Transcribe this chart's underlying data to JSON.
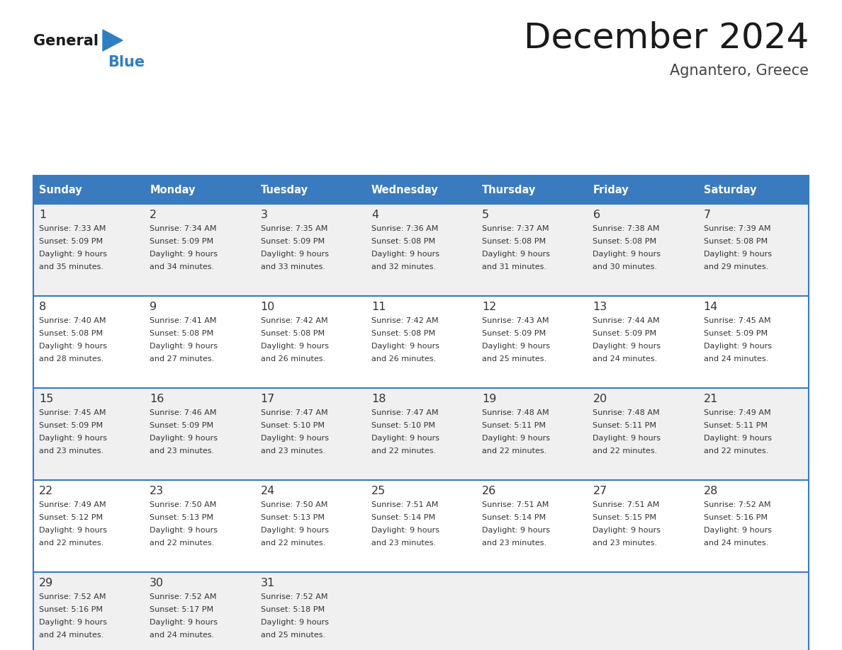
{
  "title": "December 2024",
  "subtitle": "Agnantero, Greece",
  "days_of_week": [
    "Sunday",
    "Monday",
    "Tuesday",
    "Wednesday",
    "Thursday",
    "Friday",
    "Saturday"
  ],
  "header_bg": "#3a7abf",
  "header_text": "#ffffff",
  "row_bg_odd": "#f0f0f0",
  "row_bg_even": "#ffffff",
  "border_color": "#3a7abf",
  "text_color": "#333333",
  "days": [
    {
      "day": 1,
      "col": 0,
      "row": 0,
      "sunrise": "7:33 AM",
      "sunset": "5:09 PM",
      "daylight": "9 hours and 35 minutes."
    },
    {
      "day": 2,
      "col": 1,
      "row": 0,
      "sunrise": "7:34 AM",
      "sunset": "5:09 PM",
      "daylight": "9 hours and 34 minutes."
    },
    {
      "day": 3,
      "col": 2,
      "row": 0,
      "sunrise": "7:35 AM",
      "sunset": "5:09 PM",
      "daylight": "9 hours and 33 minutes."
    },
    {
      "day": 4,
      "col": 3,
      "row": 0,
      "sunrise": "7:36 AM",
      "sunset": "5:08 PM",
      "daylight": "9 hours and 32 minutes."
    },
    {
      "day": 5,
      "col": 4,
      "row": 0,
      "sunrise": "7:37 AM",
      "sunset": "5:08 PM",
      "daylight": "9 hours and 31 minutes."
    },
    {
      "day": 6,
      "col": 5,
      "row": 0,
      "sunrise": "7:38 AM",
      "sunset": "5:08 PM",
      "daylight": "9 hours and 30 minutes."
    },
    {
      "day": 7,
      "col": 6,
      "row": 0,
      "sunrise": "7:39 AM",
      "sunset": "5:08 PM",
      "daylight": "9 hours and 29 minutes."
    },
    {
      "day": 8,
      "col": 0,
      "row": 1,
      "sunrise": "7:40 AM",
      "sunset": "5:08 PM",
      "daylight": "9 hours and 28 minutes."
    },
    {
      "day": 9,
      "col": 1,
      "row": 1,
      "sunrise": "7:41 AM",
      "sunset": "5:08 PM",
      "daylight": "9 hours and 27 minutes."
    },
    {
      "day": 10,
      "col": 2,
      "row": 1,
      "sunrise": "7:42 AM",
      "sunset": "5:08 PM",
      "daylight": "9 hours and 26 minutes."
    },
    {
      "day": 11,
      "col": 3,
      "row": 1,
      "sunrise": "7:42 AM",
      "sunset": "5:08 PM",
      "daylight": "9 hours and 26 minutes."
    },
    {
      "day": 12,
      "col": 4,
      "row": 1,
      "sunrise": "7:43 AM",
      "sunset": "5:09 PM",
      "daylight": "9 hours and 25 minutes."
    },
    {
      "day": 13,
      "col": 5,
      "row": 1,
      "sunrise": "7:44 AM",
      "sunset": "5:09 PM",
      "daylight": "9 hours and 24 minutes."
    },
    {
      "day": 14,
      "col": 6,
      "row": 1,
      "sunrise": "7:45 AM",
      "sunset": "5:09 PM",
      "daylight": "9 hours and 24 minutes."
    },
    {
      "day": 15,
      "col": 0,
      "row": 2,
      "sunrise": "7:45 AM",
      "sunset": "5:09 PM",
      "daylight": "9 hours and 23 minutes."
    },
    {
      "day": 16,
      "col": 1,
      "row": 2,
      "sunrise": "7:46 AM",
      "sunset": "5:09 PM",
      "daylight": "9 hours and 23 minutes."
    },
    {
      "day": 17,
      "col": 2,
      "row": 2,
      "sunrise": "7:47 AM",
      "sunset": "5:10 PM",
      "daylight": "9 hours and 23 minutes."
    },
    {
      "day": 18,
      "col": 3,
      "row": 2,
      "sunrise": "7:47 AM",
      "sunset": "5:10 PM",
      "daylight": "9 hours and 22 minutes."
    },
    {
      "day": 19,
      "col": 4,
      "row": 2,
      "sunrise": "7:48 AM",
      "sunset": "5:11 PM",
      "daylight": "9 hours and 22 minutes."
    },
    {
      "day": 20,
      "col": 5,
      "row": 2,
      "sunrise": "7:48 AM",
      "sunset": "5:11 PM",
      "daylight": "9 hours and 22 minutes."
    },
    {
      "day": 21,
      "col": 6,
      "row": 2,
      "sunrise": "7:49 AM",
      "sunset": "5:11 PM",
      "daylight": "9 hours and 22 minutes."
    },
    {
      "day": 22,
      "col": 0,
      "row": 3,
      "sunrise": "7:49 AM",
      "sunset": "5:12 PM",
      "daylight": "9 hours and 22 minutes."
    },
    {
      "day": 23,
      "col": 1,
      "row": 3,
      "sunrise": "7:50 AM",
      "sunset": "5:13 PM",
      "daylight": "9 hours and 22 minutes."
    },
    {
      "day": 24,
      "col": 2,
      "row": 3,
      "sunrise": "7:50 AM",
      "sunset": "5:13 PM",
      "daylight": "9 hours and 22 minutes."
    },
    {
      "day": 25,
      "col": 3,
      "row": 3,
      "sunrise": "7:51 AM",
      "sunset": "5:14 PM",
      "daylight": "9 hours and 23 minutes."
    },
    {
      "day": 26,
      "col": 4,
      "row": 3,
      "sunrise": "7:51 AM",
      "sunset": "5:14 PM",
      "daylight": "9 hours and 23 minutes."
    },
    {
      "day": 27,
      "col": 5,
      "row": 3,
      "sunrise": "7:51 AM",
      "sunset": "5:15 PM",
      "daylight": "9 hours and 23 minutes."
    },
    {
      "day": 28,
      "col": 6,
      "row": 3,
      "sunrise": "7:52 AM",
      "sunset": "5:16 PM",
      "daylight": "9 hours and 24 minutes."
    },
    {
      "day": 29,
      "col": 0,
      "row": 4,
      "sunrise": "7:52 AM",
      "sunset": "5:16 PM",
      "daylight": "9 hours and 24 minutes."
    },
    {
      "day": 30,
      "col": 1,
      "row": 4,
      "sunrise": "7:52 AM",
      "sunset": "5:17 PM",
      "daylight": "9 hours and 24 minutes."
    },
    {
      "day": 31,
      "col": 2,
      "row": 4,
      "sunrise": "7:52 AM",
      "sunset": "5:18 PM",
      "daylight": "9 hours and 25 minutes."
    }
  ],
  "logo_general_color": "#1a1a1a",
  "logo_blue_color": "#2e7fc1",
  "logo_triangle_color": "#2e7fc1",
  "fig_width": 11.88,
  "fig_height": 9.18,
  "dpi": 100
}
